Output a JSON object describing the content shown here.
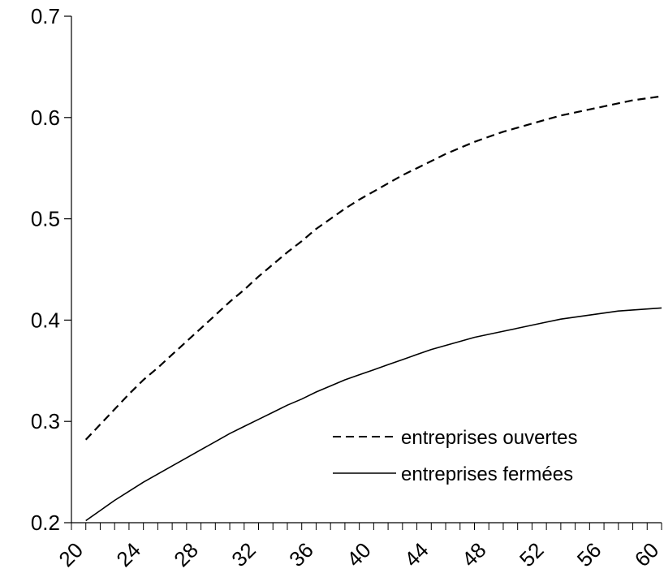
{
  "chart_data": {
    "type": "line",
    "title": "",
    "xlabel": "",
    "ylabel": "",
    "xlim": [
      20,
      61
    ],
    "ylim": [
      0.2,
      0.7
    ],
    "x_ticks_major": [
      20,
      24,
      28,
      32,
      36,
      40,
      44,
      48,
      52,
      56,
      60
    ],
    "x_tick_labels": [
      "20",
      "24",
      "28",
      "32",
      "36",
      "40",
      "44",
      "48",
      "52",
      "56",
      "60"
    ],
    "y_ticks": [
      0.2,
      0.3,
      0.4,
      0.5,
      0.6,
      0.7
    ],
    "y_tick_labels": [
      "0.2",
      "0.3",
      "0.4",
      "0.5",
      "0.6",
      "0.7"
    ],
    "grid": false,
    "legend_position": "bottom-right",
    "x": [
      21,
      22,
      23,
      24,
      25,
      26,
      27,
      28,
      29,
      30,
      31,
      32,
      33,
      34,
      35,
      36,
      37,
      38,
      39,
      40,
      41,
      42,
      43,
      44,
      45,
      46,
      47,
      48,
      49,
      50,
      51,
      52,
      53,
      54,
      55,
      56,
      57,
      58,
      59,
      60,
      61
    ],
    "series": [
      {
        "name": "entreprises ouvertes",
        "style": "dashed",
        "color": "#000000",
        "values": [
          0.282,
          0.297,
          0.312,
          0.327,
          0.341,
          0.353,
          0.366,
          0.379,
          0.392,
          0.405,
          0.418,
          0.43,
          0.443,
          0.455,
          0.467,
          0.478,
          0.49,
          0.5,
          0.51,
          0.519,
          0.527,
          0.535,
          0.543,
          0.55,
          0.557,
          0.564,
          0.57,
          0.576,
          0.581,
          0.586,
          0.59,
          0.594,
          0.598,
          0.602,
          0.605,
          0.608,
          0.611,
          0.614,
          0.617,
          0.619,
          0.621
        ]
      },
      {
        "name": "entreprises fermées",
        "style": "solid",
        "color": "#000000",
        "values": [
          0.202,
          0.212,
          0.222,
          0.231,
          0.24,
          0.248,
          0.256,
          0.264,
          0.272,
          0.28,
          0.288,
          0.295,
          0.302,
          0.309,
          0.316,
          0.322,
          0.329,
          0.335,
          0.341,
          0.346,
          0.351,
          0.356,
          0.361,
          0.366,
          0.371,
          0.375,
          0.379,
          0.383,
          0.386,
          0.389,
          0.392,
          0.395,
          0.398,
          0.401,
          0.403,
          0.405,
          0.407,
          0.409,
          0.41,
          0.411,
          0.412
        ]
      }
    ]
  }
}
